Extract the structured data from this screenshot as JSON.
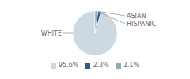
{
  "chart_data": {
    "type": "pie",
    "categories": [
      "WHITE",
      "ASIAN",
      "HISPANIC"
    ],
    "values": [
      95.6,
      2.3,
      2.1
    ],
    "colors": [
      "#cdd8e0",
      "#2e5f8a",
      "#8faab8"
    ],
    "value_labels": [
      "95.6%",
      "2.3%",
      "2.1%"
    ],
    "legend": "bottom"
  }
}
